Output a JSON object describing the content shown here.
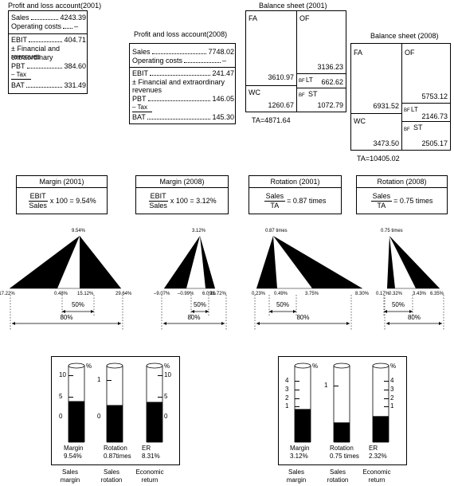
{
  "pl2001": {
    "title": "Profit and loss account(2001)",
    "sales_label": "Sales",
    "sales_value": "4243.39",
    "opcost_label": "Operating costs",
    "opcost_value": "–",
    "ebit_label": "EBIT",
    "ebit_value": "404.71",
    "fin_label": "± Financial and extraordinary",
    "fin_label2": "revenues",
    "pbt_label": "PBT",
    "pbt_value": "384.60",
    "tax_label": "– Tax",
    "bat_label": "BAT",
    "bat_value": "331.49"
  },
  "pl2008": {
    "title": "Profit and loss account(2008)",
    "sales_label": "Sales",
    "sales_value": "7748.02",
    "opcost_label": "Operating costs",
    "opcost_value": "–",
    "ebit_label": "EBIT",
    "ebit_value": "241.47",
    "fin_label": "± Financial and extraordinary",
    "fin_label2": "revenues",
    "pbt_label": "PBT",
    "pbt_value": "146.05",
    "tax_label": "– Tax",
    "bat_label": "BAT",
    "bat_value": "145.30"
  },
  "bs2001": {
    "title": "Balance sheet (2001)",
    "fa_label": "FA",
    "fa_value": "3610.97",
    "wc_label": "WC",
    "wc_value": "1260.67",
    "of_label": "OF",
    "of_value": "3136.23",
    "bf": "BF",
    "lt_label": "LT",
    "lt_value": "662.62",
    "st_label": "ST",
    "st_value": "1072.79",
    "ta": "TA=4871.64"
  },
  "bs2008": {
    "title": "Balance sheet (2008)",
    "fa_label": "FA",
    "fa_value": "6931.52",
    "wc_label": "WC",
    "wc_value": "3473.50",
    "of_label": "OF",
    "of_value": "5753.12",
    "bf": "BF",
    "lt_label": "LT",
    "lt_value": "2146.73",
    "st_label": "ST",
    "st_value": "2505.17",
    "ta": "TA=10405.02"
  },
  "ratios": [
    {
      "title": "Margin (2001)",
      "num": "EBIT",
      "den": "Sales",
      "rhs": "x 100 = 9.54%"
    },
    {
      "title": "Margin (2008)",
      "num": "EBIT",
      "den": "Sales",
      "rhs": "x 100 = 3.12%"
    },
    {
      "title": "Rotation (2001)",
      "num": "Sales",
      "den": "TA",
      "rhs": "= 0.87 times"
    },
    {
      "title": "Rotation (2008)",
      "num": "Sales",
      "den": "TA",
      "rhs": "= 0.75 times"
    }
  ],
  "fans": [
    {
      "apex": "9.54%",
      "labels": [
        "–17.22%",
        "0.48%",
        "15.12%",
        "29.64%"
      ],
      "pct50": "50%",
      "pct80": "80%"
    },
    {
      "apex": "3.12%",
      "labels": [
        "–9.07%",
        "–0.99%",
        "6.09%",
        "11.72%"
      ],
      "pct50": "50%",
      "pct80": "80%"
    },
    {
      "apex": "0.87 times",
      "labels": [
        "0.23%",
        "0.49%",
        "3.75%",
        "8.30%"
      ],
      "pct50": "50%",
      "pct80": "80%"
    },
    {
      "apex": "0.75 times",
      "labels": [
        "0.17%",
        "0.32%",
        "3.43%",
        "6.35%"
      ],
      "pct50": "50%",
      "pct80": "80%"
    }
  ],
  "gauges": [
    {
      "pct": "%",
      "bars": [
        {
          "label": "Margin",
          "value": "9.54%",
          "ticks": [
            "10",
            "5",
            "0"
          ],
          "fill": 0.52
        },
        {
          "label": "Rotation",
          "value": "0.87times",
          "ticks": [
            "1",
            "0"
          ],
          "fill": 0.47
        },
        {
          "label": "ER",
          "value": "8.31%",
          "ticks": [
            "10",
            "5",
            "0"
          ],
          "fill": 0.51
        }
      ],
      "captions": [
        "Sales\nmargin",
        "Sales\nrotation",
        "Economic\nreturn"
      ]
    },
    {
      "pct": "%",
      "bars": [
        {
          "label": "Margin",
          "value": "3.12%",
          "ticks": [
            "4",
            "3",
            "2",
            "1"
          ],
          "fill": 0.42
        },
        {
          "label": "Rotation",
          "value": "0.75 times",
          "ticks": [
            "1"
          ],
          "fill": 0.25
        },
        {
          "label": "ER",
          "value": "2.32%",
          "ticks": [
            "4",
            "3",
            "2",
            "1"
          ],
          "fill": 0.33
        }
      ],
      "captions": [
        "Sales\nmargin",
        "Sales\nrotation",
        "Economic\nreturn"
      ]
    }
  ]
}
